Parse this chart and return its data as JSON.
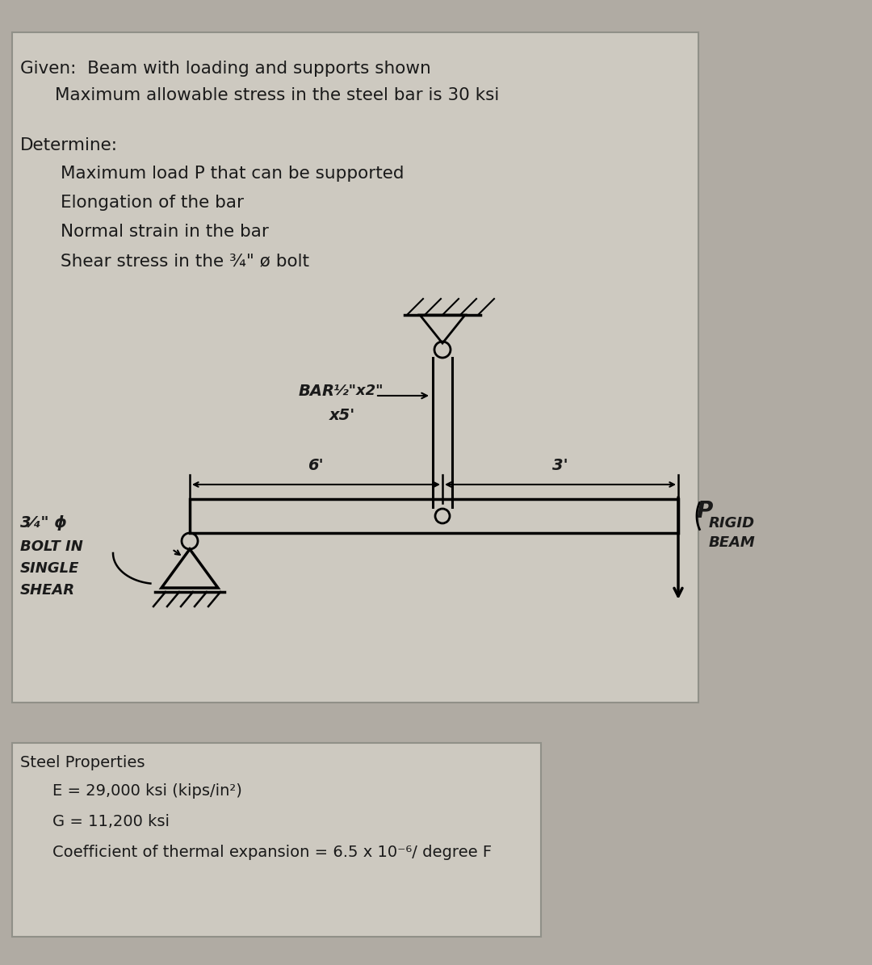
{
  "bg_color": "#b0aba3",
  "panel_top_color": "#cdc9c0",
  "panel_bot_color": "#cdc9c0",
  "text_color": "#1a1a1a",
  "given_line1": "Given:  Beam with loading and supports shown",
  "given_line2": "Maximum allowable stress in the steel bar is 30 ksi",
  "determine_label": "Determine:",
  "determine_items": [
    "Maximum load P that can be supported",
    "Elongation of the bar",
    "Normal strain in the bar",
    "Shear stress in the ¾\" ø bolt"
  ],
  "steel_props_title": "Steel Properties",
  "steel_props_items": [
    "E = 29,000 ksi (kips/in²)",
    "G = 11,200 ksi",
    "Coefficient of thermal expansion = 6.5 x 10⁻⁶/ degree F"
  ]
}
